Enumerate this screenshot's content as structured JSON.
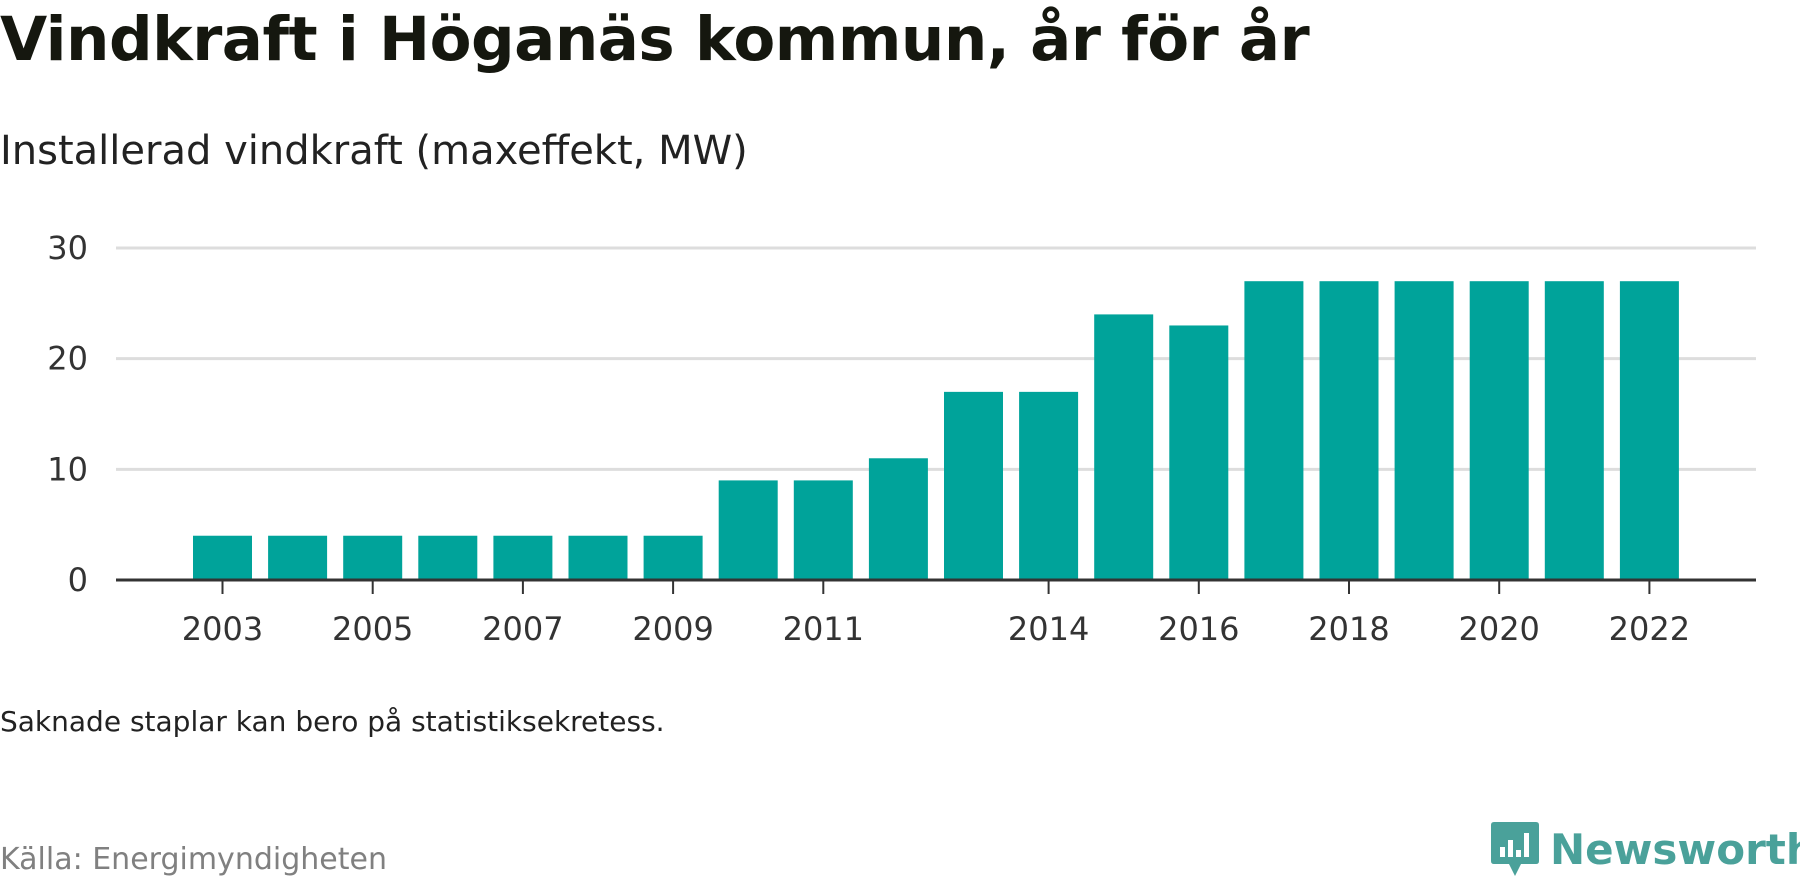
{
  "header": {
    "title": "Vindkraft i Höganäs kommun, år för år",
    "subtitle": "Installerad vindkraft (maxeffekt, MW)"
  },
  "footer": {
    "note": "Saknade staplar kan bero på statistiksekretess.",
    "source": "Källa: Energimyndigheten",
    "brand": "Newsworthy"
  },
  "colors": {
    "bar": "#00a39a",
    "grid": "#dddddd",
    "axis": "#333333",
    "brand": "#4aa19a"
  },
  "chart_data": {
    "type": "bar",
    "title": "Vindkraft i Höganäs kommun, år för år",
    "subtitle": "Installerad vindkraft (maxeffekt, MW)",
    "xlabel": "",
    "ylabel": "",
    "categories": [
      "2003",
      "2004",
      "2005",
      "2006",
      "2007",
      "2008",
      "2009",
      "2010",
      "2011",
      "2012",
      "2013",
      "2014",
      "2015",
      "2016",
      "2017",
      "2018",
      "2019",
      "2020",
      "2021",
      "2022"
    ],
    "values": [
      4,
      4,
      4,
      4,
      4,
      4,
      4,
      9,
      9,
      11,
      17,
      17,
      24,
      23,
      27,
      27,
      27,
      27,
      27,
      27
    ],
    "x_tick_labels": [
      "2003",
      "2005",
      "2007",
      "2009",
      "2011",
      "2014",
      "2016",
      "2018",
      "2020",
      "2022"
    ],
    "y_ticks": [
      0,
      10,
      20,
      30
    ],
    "ylim": [
      0,
      30
    ],
    "grid": true,
    "legend": "none"
  }
}
